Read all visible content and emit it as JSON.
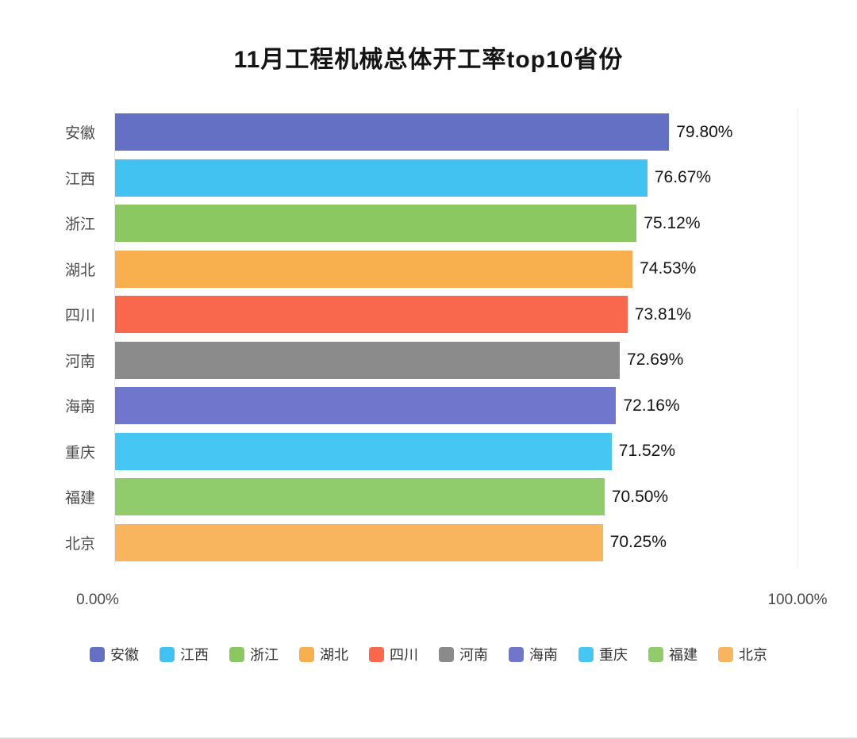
{
  "title": "11月工程机械总体开工率top10省份",
  "chart_data": {
    "type": "bar",
    "orientation": "horizontal",
    "title": "11月工程机械总体开工率top10省份",
    "categories": [
      "安徽",
      "江西",
      "浙江",
      "湖北",
      "四川",
      "河南",
      "海南",
      "重庆",
      "福建",
      "北京"
    ],
    "values": [
      79.8,
      76.67,
      75.12,
      74.53,
      73.81,
      72.69,
      72.16,
      71.52,
      70.5,
      70.25
    ],
    "value_labels": [
      "79.80%",
      "76.67%",
      "75.12%",
      "74.53%",
      "73.81%",
      "72.69%",
      "72.16%",
      "71.52%",
      "70.50%",
      "70.25%"
    ],
    "colors": [
      "#6470C4",
      "#41C2F1",
      "#8BC862",
      "#F8AF4D",
      "#F9684C",
      "#8B8B8B",
      "#6F76CB",
      "#45C6F3",
      "#90CB6C",
      "#F9B55E"
    ],
    "xlim": [
      0,
      100
    ],
    "x_tick_labels": [
      "0.00%",
      "100.00%"
    ],
    "grid": "minimal",
    "legend_position": "bottom"
  }
}
